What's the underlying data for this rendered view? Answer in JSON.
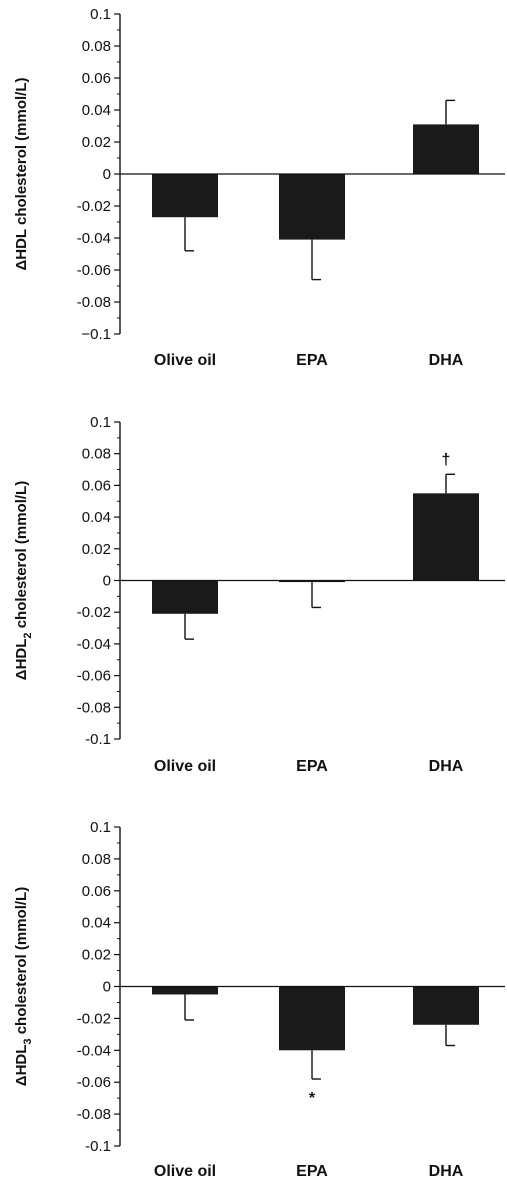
{
  "chart_data": [
    {
      "type": "bar",
      "categories": [
        "Olive oil",
        "EPA",
        "DHA"
      ],
      "values": [
        -0.027,
        -0.041,
        0.031
      ],
      "errors": [
        0.021,
        0.025,
        0.015
      ],
      "ylabel": {
        "prefix": "ΔHDL",
        "sub": "",
        "suffix": " cholesterol (mmol/L)"
      },
      "ylim": [
        -0.1,
        0.1
      ],
      "yticks": [
        "0.1",
        "0.08",
        "0.06",
        "0.04",
        "0.02",
        "0",
        "-0.02",
        "-0.04",
        "-0.06",
        "-0.08",
        "−0.1"
      ],
      "annotations": [],
      "bar_color": "#1a1a1a"
    },
    {
      "type": "bar",
      "categories": [
        "Olive oil",
        "EPA",
        "DHA"
      ],
      "values": [
        -0.021,
        -0.001,
        0.055
      ],
      "errors": [
        0.016,
        0.016,
        0.012
      ],
      "ylabel": {
        "prefix": "ΔHDL",
        "sub": "2",
        "suffix": " cholesterol (mmol/L)"
      },
      "ylim": [
        -0.1,
        0.1
      ],
      "yticks": [
        "0.1",
        "0.08",
        "0.06",
        "0.04",
        "0.02",
        "0",
        "-0.02",
        "-0.04",
        "-0.06",
        "-0.08",
        "-0.1"
      ],
      "annotations": [
        {
          "category_index": 2,
          "text": "†",
          "position": "above"
        }
      ],
      "bar_color": "#1a1a1a"
    },
    {
      "type": "bar",
      "categories": [
        "Olive oil",
        "EPA",
        "DHA"
      ],
      "values": [
        -0.005,
        -0.04,
        -0.024
      ],
      "errors": [
        0.016,
        0.018,
        0.013
      ],
      "ylabel": {
        "prefix": "ΔHDL",
        "sub": "3",
        "suffix": " cholesterol (mmol/L)"
      },
      "ylim": [
        -0.1,
        0.1
      ],
      "yticks": [
        "0.1",
        "0.08",
        "0.06",
        "0.04",
        "0.02",
        "0",
        "-0.02",
        "-0.04",
        "-0.06",
        "-0.08",
        "-0.1"
      ],
      "annotations": [
        {
          "category_index": 1,
          "text": "*",
          "position": "below"
        }
      ],
      "bar_color": "#1a1a1a"
    }
  ]
}
